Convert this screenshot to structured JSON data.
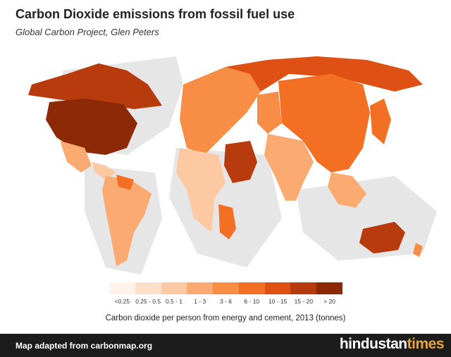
{
  "header": {
    "title": "Carbon Dioxide emissions from fossil fuel use",
    "subtitle": "Global Carbon Project, Glen Peters"
  },
  "map": {
    "type": "cartogram",
    "colors": {
      "background_land": "#e6e6e6",
      "scale": [
        "#fff3ea",
        "#fde0c9",
        "#fcc9a2",
        "#fbab71",
        "#f88d46",
        "#f26f23",
        "#de5013",
        "#b83b0d",
        "#8c2a08"
      ]
    },
    "regions": [
      {
        "name": "United States",
        "class": "> 20"
      },
      {
        "name": "Canada",
        "class": "15 - 20"
      },
      {
        "name": "Mexico",
        "class": "3 - 6"
      },
      {
        "name": "South America",
        "class": "1 - 3"
      },
      {
        "name": "Europe",
        "class": "6 - 10"
      },
      {
        "name": "Russia",
        "class": "10 - 15"
      },
      {
        "name": "China",
        "class": "6 - 10"
      },
      {
        "name": "India",
        "class": "1 - 3"
      },
      {
        "name": "Middle East",
        "class": "15 - 20"
      },
      {
        "name": "Africa",
        "class": "1 - 3"
      },
      {
        "name": "Japan",
        "class": "6 - 10"
      },
      {
        "name": "Australia",
        "class": "15 - 20"
      }
    ]
  },
  "legend": {
    "labels": [
      "<0.25",
      "0.25 - 0.5",
      "0.5 - 1",
      "1 - 3",
      "3 - 6",
      "6 - 10",
      "10 - 15",
      "15 - 20",
      "> 20"
    ],
    "caption": "Carbon dioxide per person from energy and cement, 2013 (tonnes)"
  },
  "footer": {
    "credit": "Map adapted from carbonmap.org",
    "brand_part1": "hindustan",
    "brand_part2": "times"
  }
}
